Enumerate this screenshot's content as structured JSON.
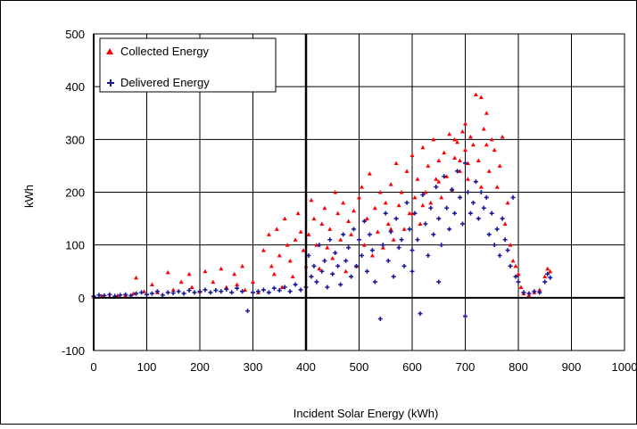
{
  "chart_data": {
    "type": "scatter",
    "xlabel": "Incident Solar Energy (kWh)",
    "ylabel": "kWh",
    "xlim": [
      0,
      1000
    ],
    "ylim": [
      -100,
      500
    ],
    "xticks": [
      0,
      100,
      200,
      300,
      400,
      500,
      600,
      700,
      800,
      900,
      1000
    ],
    "yticks": [
      -100,
      0,
      100,
      200,
      300,
      400,
      500
    ],
    "grid": true,
    "legend": "top-left",
    "series": [
      {
        "name": "Collected Energy",
        "color": "#ff0000",
        "marker": "triangle",
        "points": [
          [
            0,
            2
          ],
          [
            15,
            3
          ],
          [
            30,
            2
          ],
          [
            45,
            4
          ],
          [
            60,
            5
          ],
          [
            75,
            8
          ],
          [
            80,
            38
          ],
          [
            95,
            12
          ],
          [
            110,
            25
          ],
          [
            120,
            10
          ],
          [
            140,
            48
          ],
          [
            150,
            15
          ],
          [
            165,
            30
          ],
          [
            180,
            45
          ],
          [
            185,
            20
          ],
          [
            200,
            12
          ],
          [
            210,
            50
          ],
          [
            225,
            30
          ],
          [
            240,
            55
          ],
          [
            250,
            20
          ],
          [
            265,
            45
          ],
          [
            270,
            25
          ],
          [
            280,
            60
          ],
          [
            285,
            15
          ],
          [
            300,
            30
          ],
          [
            310,
            10
          ],
          [
            320,
            90
          ],
          [
            330,
            120
          ],
          [
            335,
            60
          ],
          [
            340,
            45
          ],
          [
            345,
            130
          ],
          [
            350,
            80
          ],
          [
            355,
            20
          ],
          [
            360,
            150
          ],
          [
            365,
            100
          ],
          [
            370,
            70
          ],
          [
            375,
            40
          ],
          [
            380,
            110
          ],
          [
            385,
            160
          ],
          [
            390,
            125
          ],
          [
            395,
            90
          ],
          [
            400,
            60
          ],
          [
            405,
            120
          ],
          [
            410,
            185
          ],
          [
            415,
            150
          ],
          [
            420,
            100
          ],
          [
            425,
            55
          ],
          [
            430,
            140
          ],
          [
            435,
            170
          ],
          [
            440,
            95
          ],
          [
            445,
            130
          ],
          [
            450,
            75
          ],
          [
            455,
            200
          ],
          [
            460,
            160
          ],
          [
            465,
            110
          ],
          [
            470,
            180
          ],
          [
            475,
            50
          ],
          [
            480,
            145
          ],
          [
            485,
            120
          ],
          [
            490,
            165
          ],
          [
            495,
            60
          ],
          [
            500,
            190
          ],
          [
            505,
            210
          ],
          [
            510,
            100
          ],
          [
            515,
            150
          ],
          [
            520,
            235
          ],
          [
            525,
            80
          ],
          [
            530,
            170
          ],
          [
            535,
            125
          ],
          [
            540,
            200
          ],
          [
            545,
            95
          ],
          [
            550,
            180
          ],
          [
            555,
            140
          ],
          [
            560,
            215
          ],
          [
            565,
            110
          ],
          [
            570,
            255
          ],
          [
            575,
            175
          ],
          [
            580,
            200
          ],
          [
            585,
            130
          ],
          [
            590,
            240
          ],
          [
            595,
            160
          ],
          [
            600,
            270
          ],
          [
            605,
            190
          ],
          [
            610,
            225
          ],
          [
            615,
            140
          ],
          [
            620,
            285
          ],
          [
            625,
            200
          ],
          [
            630,
            250
          ],
          [
            635,
            180
          ],
          [
            640,
            300
          ],
          [
            645,
            225
          ],
          [
            650,
            260
          ],
          [
            655,
            190
          ],
          [
            660,
            275
          ],
          [
            665,
            230
          ],
          [
            670,
            310
          ],
          [
            675,
            205
          ],
          [
            680,
            265
          ],
          [
            685,
            295
          ],
          [
            690,
            240
          ],
          [
            695,
            315
          ],
          [
            700,
            280
          ],
          [
            705,
            225
          ],
          [
            710,
            305
          ],
          [
            715,
            290
          ],
          [
            720,
            385
          ],
          [
            725,
            260
          ],
          [
            730,
            380
          ],
          [
            735,
            320
          ],
          [
            740,
            350
          ],
          [
            745,
            240
          ],
          [
            750,
            300
          ],
          [
            755,
            280
          ],
          [
            760,
            210
          ],
          [
            765,
            250
          ],
          [
            770,
            305
          ],
          [
            775,
            140
          ],
          [
            780,
            180
          ],
          [
            785,
            100
          ],
          [
            790,
            70
          ],
          [
            795,
            60
          ],
          [
            800,
            45
          ],
          [
            805,
            20
          ],
          [
            810,
            8
          ],
          [
            820,
            5
          ],
          [
            830,
            10
          ],
          [
            840,
            15
          ],
          [
            850,
            40
          ],
          [
            855,
            55
          ],
          [
            860,
            50
          ],
          [
            560,
            130
          ],
          [
            620,
            175
          ],
          [
            690,
            260
          ],
          [
            730,
            210
          ],
          [
            600,
            160
          ],
          [
            650,
            220
          ],
          [
            700,
            330
          ],
          [
            705,
            255
          ],
          [
            680,
            300
          ],
          [
            740,
            290
          ]
        ]
      },
      {
        "name": "Delivered Energy",
        "color": "#1a1a99",
        "marker": "plus",
        "points": [
          [
            0,
            3
          ],
          [
            10,
            5
          ],
          [
            20,
            4
          ],
          [
            30,
            6
          ],
          [
            40,
            3
          ],
          [
            50,
            5
          ],
          [
            60,
            6
          ],
          [
            70,
            4
          ],
          [
            80,
            8
          ],
          [
            90,
            10
          ],
          [
            100,
            6
          ],
          [
            110,
            8
          ],
          [
            120,
            12
          ],
          [
            130,
            5
          ],
          [
            140,
            10
          ],
          [
            150,
            9
          ],
          [
            160,
            12
          ],
          [
            170,
            8
          ],
          [
            180,
            14
          ],
          [
            190,
            10
          ],
          [
            200,
            12
          ],
          [
            210,
            15
          ],
          [
            220,
            10
          ],
          [
            230,
            14
          ],
          [
            240,
            12
          ],
          [
            250,
            16
          ],
          [
            260,
            10
          ],
          [
            270,
            18
          ],
          [
            280,
            12
          ],
          [
            290,
            -25
          ],
          [
            300,
            10
          ],
          [
            310,
            12
          ],
          [
            320,
            15
          ],
          [
            330,
            10
          ],
          [
            340,
            18
          ],
          [
            350,
            14
          ],
          [
            360,
            20
          ],
          [
            370,
            12
          ],
          [
            380,
            25
          ],
          [
            390,
            15
          ],
          [
            400,
            20
          ],
          [
            405,
            80
          ],
          [
            410,
            40
          ],
          [
            415,
            60
          ],
          [
            420,
            30
          ],
          [
            425,
            100
          ],
          [
            430,
            50
          ],
          [
            435,
            70
          ],
          [
            440,
            20
          ],
          [
            445,
            110
          ],
          [
            450,
            45
          ],
          [
            455,
            85
          ],
          [
            460,
            60
          ],
          [
            465,
            25
          ],
          [
            470,
            120
          ],
          [
            475,
            70
          ],
          [
            480,
            95
          ],
          [
            485,
            40
          ],
          [
            490,
            130
          ],
          [
            495,
            60
          ],
          [
            500,
            110
          ],
          [
            505,
            80
          ],
          [
            510,
            145
          ],
          [
            515,
            50
          ],
          [
            520,
            120
          ],
          [
            525,
            90
          ],
          [
            530,
            30
          ],
          [
            540,
            -40
          ],
          [
            545,
            100
          ],
          [
            550,
            160
          ],
          [
            555,
            70
          ],
          [
            560,
            125
          ],
          [
            565,
            40
          ],
          [
            570,
            150
          ],
          [
            575,
            95
          ],
          [
            580,
            110
          ],
          [
            585,
            60
          ],
          [
            590,
            180
          ],
          [
            595,
            130
          ],
          [
            600,
            90
          ],
          [
            605,
            160
          ],
          [
            610,
            110
          ],
          [
            615,
            -30
          ],
          [
            620,
            195
          ],
          [
            625,
            140
          ],
          [
            630,
            80
          ],
          [
            635,
            170
          ],
          [
            640,
            120
          ],
          [
            645,
            210
          ],
          [
            650,
            150
          ],
          [
            655,
            100
          ],
          [
            660,
            230
          ],
          [
            665,
            170
          ],
          [
            670,
            130
          ],
          [
            675,
            205
          ],
          [
            680,
            160
          ],
          [
            685,
            240
          ],
          [
            690,
            190
          ],
          [
            695,
            140
          ],
          [
            700,
            255
          ],
          [
            705,
            200
          ],
          [
            710,
            160
          ],
          [
            715,
            180
          ],
          [
            720,
            220
          ],
          [
            725,
            150
          ],
          [
            730,
            200
          ],
          [
            735,
            170
          ],
          [
            740,
            190
          ],
          [
            745,
            120
          ],
          [
            750,
            160
          ],
          [
            755,
            100
          ],
          [
            760,
            130
          ],
          [
            765,
            80
          ],
          [
            770,
            150
          ],
          [
            775,
            110
          ],
          [
            780,
            90
          ],
          [
            785,
            60
          ],
          [
            790,
            190
          ],
          [
            795,
            40
          ],
          [
            800,
            30
          ],
          [
            810,
            10
          ],
          [
            820,
            8
          ],
          [
            830,
            12
          ],
          [
            840,
            10
          ],
          [
            850,
            30
          ],
          [
            855,
            45
          ],
          [
            860,
            38
          ],
          [
            700,
            -35
          ],
          [
            600,
            50
          ],
          [
            650,
            30
          ]
        ]
      }
    ]
  }
}
